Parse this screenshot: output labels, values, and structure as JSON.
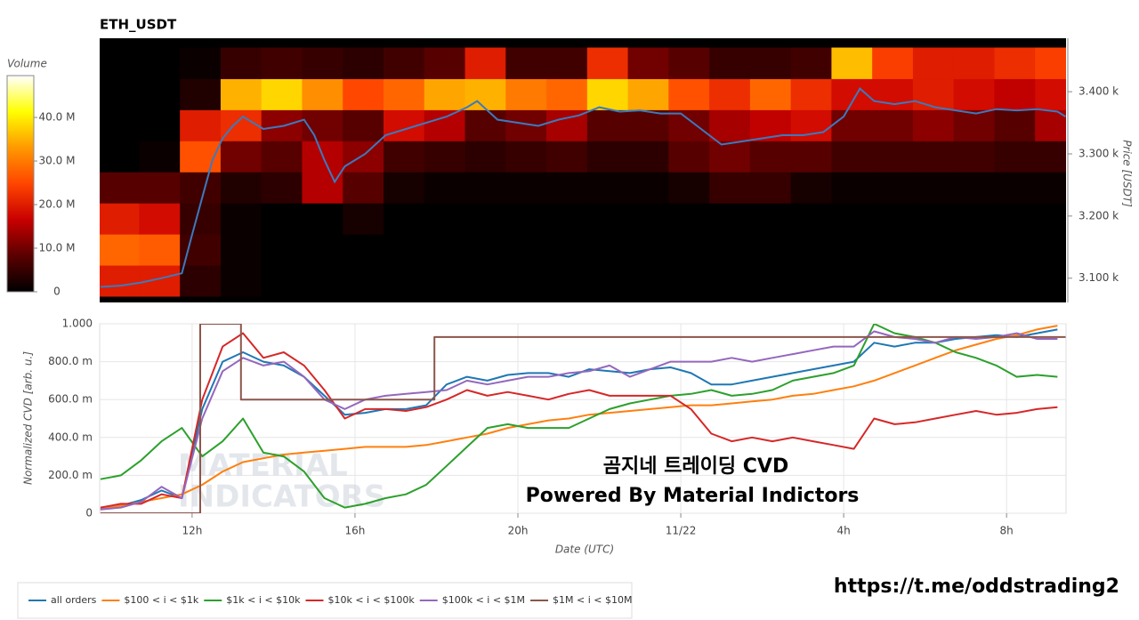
{
  "chart_data": [
    {
      "type": "heatmap",
      "title": "ETH_USDT",
      "colorbar_label": "Volume",
      "ylabel": "Price [USDT]",
      "xlim": [
        9.73,
        33.46
      ],
      "ylim": [
        3061,
        3486
      ],
      "yticks": [
        {
          "value": 3100,
          "label": "3.100 k"
        },
        {
          "value": 3200,
          "label": "3.200 k"
        },
        {
          "value": 3300,
          "label": "3.300 k"
        },
        {
          "value": 3400,
          "label": "3.400 k"
        }
      ],
      "xbins": [
        9.7,
        10.7,
        11.7,
        12.7,
        13.7,
        14.7,
        15.7,
        16.7,
        17.7,
        18.7,
        19.7,
        20.7,
        21.7,
        22.7,
        23.7,
        24.7,
        25.7,
        26.7,
        27.7,
        28.7,
        29.7,
        30.7,
        31.7,
        32.7,
        33.7
      ],
      "ybins": [
        3071,
        3121,
        3171,
        3221,
        3271,
        3321,
        3371,
        3421,
        3471
      ],
      "z": [
        [
          20,
          20,
          4,
          1,
          0,
          0,
          0,
          0,
          0,
          0,
          0,
          0,
          0,
          0,
          0,
          0,
          0,
          0,
          0,
          0,
          0,
          0,
          0,
          0
        ],
        [
          28,
          27,
          6,
          1,
          0,
          0,
          0,
          0,
          0,
          0,
          0,
          0,
          0,
          0,
          0,
          0,
          0,
          0,
          0,
          0,
          0,
          0,
          0,
          0
        ],
        [
          20,
          18,
          5,
          1,
          0,
          0,
          2,
          0,
          0,
          0,
          0,
          0,
          0,
          0,
          0,
          0,
          0,
          0,
          0,
          0,
          0,
          0,
          0,
          0
        ],
        [
          8,
          8,
          6,
          3,
          4,
          15,
          8,
          2,
          1,
          1,
          1,
          1,
          1,
          1,
          2,
          5,
          5,
          2,
          1,
          1,
          1,
          1,
          1,
          1
        ],
        [
          0,
          1,
          26,
          10,
          8,
          15,
          12,
          6,
          5,
          4,
          5,
          6,
          4,
          4,
          8,
          10,
          8,
          8,
          6,
          6,
          6,
          6,
          5,
          5
        ],
        [
          0,
          0,
          20,
          22,
          12,
          10,
          8,
          18,
          15,
          8,
          10,
          14,
          8,
          8,
          10,
          14,
          16,
          18,
          10,
          10,
          12,
          10,
          8,
          14
        ],
        [
          0,
          0,
          3,
          35,
          38,
          32,
          25,
          28,
          34,
          35,
          30,
          28,
          38,
          34,
          26,
          22,
          28,
          22,
          18,
          18,
          20,
          18,
          16,
          18
        ],
        [
          0,
          0,
          1,
          5,
          6,
          5,
          4,
          6,
          8,
          20,
          6,
          6,
          22,
          10,
          8,
          5,
          5,
          6,
          36,
          24,
          20,
          20,
          22,
          24
        ]
      ],
      "zlim": [
        0,
        49.6
      ],
      "zticks": [
        0,
        {
          "value": 10,
          "label": "10.0 M"
        },
        {
          "value": 20,
          "label": "20.0 M"
        },
        {
          "value": 30,
          "label": "30.0 M"
        },
        {
          "value": 40,
          "label": "40.0 M"
        }
      ],
      "colormap": [
        "#000000",
        "#5a0000",
        "#c80000",
        "#ff4500",
        "#ff9900",
        "#ffff00",
        "#ffffff"
      ],
      "line": {
        "color": "#3a7bbf",
        "x": [
          9.75,
          10.25,
          10.75,
          11.25,
          11.75,
          12.0,
          12.25,
          12.5,
          12.75,
          13.0,
          13.25,
          13.75,
          14.25,
          14.75,
          15.0,
          15.25,
          15.5,
          15.75,
          16.25,
          16.75,
          17.25,
          17.75,
          18.25,
          18.75,
          19.0,
          19.5,
          20.0,
          20.5,
          21.0,
          21.5,
          22.0,
          22.5,
          23.0,
          23.5,
          24.0,
          24.5,
          25.0,
          25.5,
          26.0,
          26.5,
          27.0,
          27.5,
          28.0,
          28.4,
          28.75,
          29.25,
          29.75,
          30.25,
          30.75,
          31.25,
          31.75,
          32.25,
          32.75,
          33.25,
          33.45
        ],
        "values": [
          3086,
          3088,
          3093,
          3100,
          3108,
          3170,
          3230,
          3290,
          3325,
          3345,
          3360,
          3340,
          3345,
          3355,
          3330,
          3290,
          3255,
          3280,
          3300,
          3330,
          3340,
          3350,
          3360,
          3375,
          3385,
          3355,
          3350,
          3345,
          3355,
          3362,
          3375,
          3368,
          3370,
          3365,
          3365,
          3340,
          3315,
          3320,
          3325,
          3330,
          3330,
          3335,
          3360,
          3405,
          3385,
          3380,
          3385,
          3375,
          3370,
          3365,
          3372,
          3370,
          3372,
          3368,
          3360
        ]
      }
    },
    {
      "type": "line",
      "xlabel": "Date (UTC)",
      "ylabel": "Normalized CVD [arb. u.]",
      "grid": true,
      "xlim": [
        9.73,
        33.46
      ],
      "ylim": [
        0,
        1
      ],
      "xticks": [
        {
          "value": 12,
          "label": "12h"
        },
        {
          "value": 16,
          "label": "16h"
        },
        {
          "value": 20,
          "label": "20h"
        },
        {
          "value": 24,
          "label": "11/22"
        },
        {
          "value": 28,
          "label": "4h"
        },
        {
          "value": 32,
          "label": "8h"
        }
      ],
      "yticks": [
        0,
        {
          "value": 0.2,
          "label": "200.0 m"
        },
        {
          "value": 0.4,
          "label": "400.0 m"
        },
        {
          "value": 0.6,
          "label": "600.0 m"
        },
        {
          "value": 0.8,
          "label": "800.0 m"
        },
        {
          "value": 1,
          "label": "1.000"
        }
      ],
      "x": [
        9.75,
        10.25,
        10.75,
        11.25,
        11.75,
        12.25,
        12.75,
        13.25,
        13.75,
        14.25,
        14.75,
        15.25,
        15.75,
        16.25,
        16.75,
        17.25,
        17.75,
        18.25,
        18.75,
        19.25,
        19.75,
        20.25,
        20.75,
        21.25,
        21.75,
        22.25,
        22.75,
        23.25,
        23.75,
        24.25,
        24.75,
        25.25,
        25.75,
        26.25,
        26.75,
        27.25,
        27.75,
        28.25,
        28.75,
        29.25,
        29.75,
        30.25,
        30.75,
        31.25,
        31.75,
        32.25,
        32.75,
        33.25
      ],
      "series": [
        {
          "name": "all orders",
          "color": "#1f77b4",
          "values": [
            0.02,
            0.04,
            0.07,
            0.12,
            0.08,
            0.55,
            0.8,
            0.85,
            0.8,
            0.78,
            0.72,
            0.62,
            0.52,
            0.53,
            0.55,
            0.55,
            0.57,
            0.68,
            0.72,
            0.7,
            0.73,
            0.74,
            0.74,
            0.72,
            0.76,
            0.75,
            0.74,
            0.76,
            0.77,
            0.74,
            0.68,
            0.68,
            0.7,
            0.72,
            0.74,
            0.76,
            0.78,
            0.8,
            0.9,
            0.88,
            0.9,
            0.9,
            0.92,
            0.93,
            0.94,
            0.93,
            0.95,
            0.97
          ]
        },
        {
          "name": "$100 < i < $1k",
          "color": "#ff7f0e",
          "values": [
            0.02,
            0.04,
            0.06,
            0.08,
            0.1,
            0.15,
            0.22,
            0.27,
            0.29,
            0.31,
            0.32,
            0.33,
            0.34,
            0.35,
            0.35,
            0.35,
            0.36,
            0.38,
            0.4,
            0.42,
            0.45,
            0.47,
            0.49,
            0.5,
            0.52,
            0.53,
            0.54,
            0.55,
            0.56,
            0.57,
            0.57,
            0.58,
            0.59,
            0.6,
            0.62,
            0.63,
            0.65,
            0.67,
            0.7,
            0.74,
            0.78,
            0.82,
            0.86,
            0.89,
            0.92,
            0.94,
            0.97,
            0.99
          ]
        },
        {
          "name": "$1k < i < $10k",
          "color": "#2ca02c",
          "values": [
            0.18,
            0.2,
            0.28,
            0.38,
            0.45,
            0.3,
            0.38,
            0.5,
            0.32,
            0.3,
            0.22,
            0.08,
            0.03,
            0.05,
            0.08,
            0.1,
            0.15,
            0.25,
            0.35,
            0.45,
            0.47,
            0.45,
            0.45,
            0.45,
            0.5,
            0.55,
            0.58,
            0.6,
            0.62,
            0.63,
            0.65,
            0.62,
            0.63,
            0.65,
            0.7,
            0.72,
            0.74,
            0.78,
            1.0,
            0.95,
            0.93,
            0.9,
            0.85,
            0.82,
            0.78,
            0.72,
            0.73,
            0.72
          ]
        },
        {
          "name": "$10k < i < $100k",
          "color": "#d62728",
          "values": [
            0.03,
            0.05,
            0.05,
            0.1,
            0.08,
            0.6,
            0.88,
            0.95,
            0.82,
            0.85,
            0.78,
            0.65,
            0.5,
            0.55,
            0.55,
            0.54,
            0.56,
            0.6,
            0.65,
            0.62,
            0.64,
            0.62,
            0.6,
            0.63,
            0.65,
            0.62,
            0.62,
            0.62,
            0.62,
            0.55,
            0.42,
            0.38,
            0.4,
            0.38,
            0.4,
            0.38,
            0.36,
            0.34,
            0.5,
            0.47,
            0.48,
            0.5,
            0.52,
            0.54,
            0.52,
            0.53,
            0.55,
            0.56
          ]
        },
        {
          "name": "$100k < i < $1M",
          "color": "#9467bd",
          "values": [
            0.02,
            0.03,
            0.06,
            0.14,
            0.08,
            0.5,
            0.75,
            0.82,
            0.78,
            0.8,
            0.72,
            0.6,
            0.55,
            0.6,
            0.62,
            0.63,
            0.64,
            0.65,
            0.7,
            0.68,
            0.7,
            0.72,
            0.72,
            0.74,
            0.75,
            0.78,
            0.72,
            0.76,
            0.8,
            0.8,
            0.8,
            0.82,
            0.8,
            0.82,
            0.84,
            0.86,
            0.88,
            0.88,
            0.96,
            0.93,
            0.92,
            0.9,
            0.93,
            0.92,
            0.93,
            0.95,
            0.92,
            0.92
          ]
        },
        {
          "name": "$1M < i < $10M",
          "color": "#8c564b",
          "step": "post",
          "x": [
            9.75,
            12.2,
            13.2,
            17.95,
            33.45
          ],
          "values": [
            0,
            1,
            0.6,
            0.93,
            0.93
          ]
        }
      ]
    }
  ],
  "watermark": [
    "곰지네 트레이딩 CVD",
    "Powered By Material Indictors"
  ],
  "logo": [
    "MATERIAL",
    "INDICATORS"
  ],
  "link": "https://t.me/oddstrading2"
}
